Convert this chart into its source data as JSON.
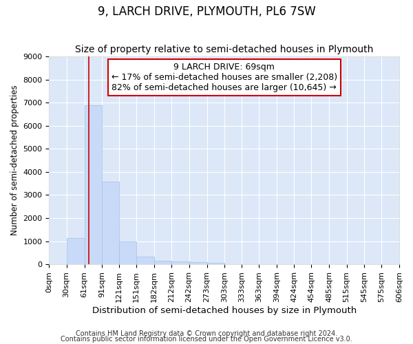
{
  "title": "9, LARCH DRIVE, PLYMOUTH, PL6 7SW",
  "subtitle": "Size of property relative to semi-detached houses in Plymouth",
  "xlabel": "Distribution of semi-detached houses by size in Plymouth",
  "ylabel": "Number of semi-detached properties",
  "footnote1": "Contains HM Land Registry data © Crown copyright and database right 2024.",
  "footnote2": "Contains public sector information licensed under the Open Government Licence v3.0.",
  "annotation_title": "9 LARCH DRIVE: 69sqm",
  "annotation_line2": "← 17% of semi-detached houses are smaller (2,208)",
  "annotation_line3": "82% of semi-detached houses are larger (10,645) →",
  "bar_edges": [
    0,
    30,
    61,
    91,
    121,
    151,
    182,
    212,
    242,
    273,
    303,
    333,
    363,
    394,
    424,
    454,
    485,
    515,
    545,
    575,
    606
  ],
  "bar_heights": [
    0,
    1130,
    6900,
    3570,
    975,
    330,
    160,
    130,
    80,
    70,
    0,
    0,
    0,
    0,
    0,
    0,
    0,
    0,
    0,
    0
  ],
  "property_size": 69,
  "bar_color": "#c9daf8",
  "bar_edgecolor": "#a4bde8",
  "vline_color": "#cc0000",
  "annotation_box_edgecolor": "#cc0000",
  "annotation_box_facecolor": "#ffffff",
  "axes_facecolor": "#dce8f8",
  "figure_facecolor": "#ffffff",
  "grid_color": "#ffffff",
  "ylim": [
    0,
    9000
  ],
  "yticks": [
    0,
    1000,
    2000,
    3000,
    4000,
    5000,
    6000,
    7000,
    8000,
    9000
  ],
  "title_fontsize": 12,
  "subtitle_fontsize": 10,
  "xlabel_fontsize": 9.5,
  "ylabel_fontsize": 8.5,
  "tick_fontsize": 8,
  "annotation_fontsize": 9,
  "footnote_fontsize": 7
}
